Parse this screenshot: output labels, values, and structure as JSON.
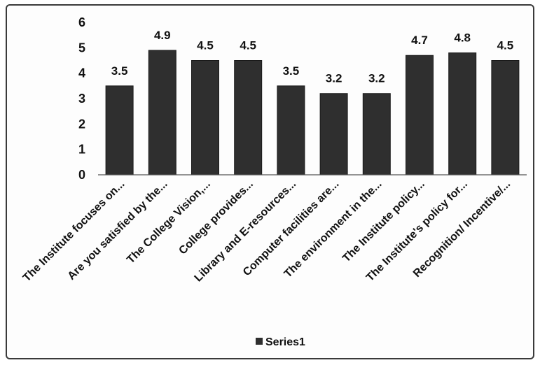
{
  "chart_data": {
    "type": "bar",
    "categories": [
      "The Institute focuses on...",
      "Are you satisfied by the...",
      "The College Vision,...",
      "College provides...",
      "Library and E-resources...",
      "Computer facilities are...",
      "The environment in the...",
      "The Institute policy...",
      "The Institute's policy for...",
      "Recognition/ Incentive/..."
    ],
    "series": [
      {
        "name": "Series1",
        "values": [
          3.5,
          4.9,
          4.5,
          4.5,
          3.5,
          3.2,
          3.2,
          4.7,
          4.8,
          4.5
        ],
        "labels": [
          "3.5",
          "4.9",
          "4.5",
          "4.5",
          "3.5",
          "3.2",
          "3.2",
          "4.7",
          "4.8",
          "4.5"
        ]
      }
    ],
    "yticks": [
      "0",
      "1",
      "2",
      "3",
      "4",
      "5",
      "6"
    ],
    "ylim": [
      0,
      6
    ],
    "grid": false,
    "legend_position": "bottom",
    "bar_color": "#2f2f2f",
    "title": "",
    "xlabel": "",
    "ylabel": ""
  }
}
